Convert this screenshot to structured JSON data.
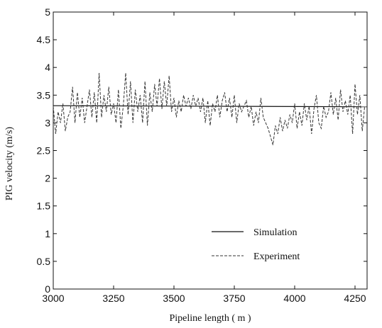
{
  "chart_data": {
    "type": "line",
    "title": "",
    "xlabel": "Pipeline length ( m )",
    "ylabel": "PIG velocity (m/s)",
    "xlim": [
      3000,
      4300
    ],
    "ylim": [
      0,
      5
    ],
    "xticks": [
      "3000",
      "3250",
      "3500",
      "3750",
      "4000",
      "4250"
    ],
    "yticks": [
      "0",
      "0.5",
      "1",
      "1.5",
      "2",
      "2.5",
      "3",
      "3.5",
      "4",
      "4.5",
      "5"
    ],
    "grid": false,
    "legend_position": "lower-right",
    "series": [
      {
        "name": "Simulation",
        "style": "solid",
        "x": [
          3000,
          4300
        ],
        "y": [
          3.31,
          3.29
        ]
      },
      {
        "name": "Experiment",
        "style": "dashed",
        "x": [
          3000,
          3010,
          3020,
          3030,
          3040,
          3050,
          3060,
          3070,
          3080,
          3090,
          3100,
          3110,
          3120,
          3130,
          3140,
          3150,
          3160,
          3170,
          3180,
          3190,
          3200,
          3210,
          3220,
          3230,
          3240,
          3250,
          3260,
          3270,
          3280,
          3290,
          3300,
          3310,
          3320,
          3330,
          3340,
          3350,
          3360,
          3370,
          3380,
          3390,
          3400,
          3410,
          3420,
          3430,
          3440,
          3450,
          3460,
          3470,
          3480,
          3490,
          3500,
          3510,
          3520,
          3530,
          3540,
          3550,
          3560,
          3570,
          3580,
          3590,
          3600,
          3610,
          3620,
          3630,
          3640,
          3650,
          3660,
          3670,
          3680,
          3690,
          3700,
          3710,
          3720,
          3730,
          3740,
          3750,
          3760,
          3770,
          3780,
          3790,
          3800,
          3810,
          3820,
          3830,
          3840,
          3850,
          3860,
          3870,
          3880,
          3890,
          3900,
          3910,
          3920,
          3930,
          3940,
          3950,
          3960,
          3970,
          3980,
          3990,
          4000,
          4010,
          4020,
          4030,
          4040,
          4050,
          4060,
          4070,
          4080,
          4090,
          4100,
          4110,
          4120,
          4130,
          4140,
          4150,
          4160,
          4170,
          4180,
          4190,
          4200,
          4210,
          4220,
          4230,
          4240,
          4250,
          4260,
          4270,
          4280,
          4290
        ],
        "y": [
          3.3,
          2.8,
          3.2,
          3.0,
          3.35,
          2.85,
          3.1,
          3.2,
          3.65,
          3.0,
          3.55,
          3.1,
          3.45,
          3.0,
          3.3,
          3.6,
          3.1,
          3.55,
          3.0,
          3.9,
          3.1,
          3.5,
          3.2,
          3.65,
          3.15,
          3.35,
          3.0,
          3.6,
          2.9,
          3.3,
          3.9,
          3.15,
          3.75,
          3.0,
          3.6,
          3.2,
          3.5,
          3.0,
          3.75,
          2.95,
          3.55,
          3.2,
          3.7,
          3.3,
          3.8,
          3.25,
          3.75,
          3.3,
          3.85,
          3.2,
          3.45,
          3.1,
          3.4,
          3.2,
          3.5,
          3.3,
          3.45,
          3.25,
          3.5,
          3.3,
          3.45,
          3.2,
          3.45,
          3.0,
          3.4,
          2.95,
          3.35,
          3.2,
          3.5,
          3.1,
          3.4,
          3.55,
          3.2,
          3.45,
          3.1,
          3.5,
          3.0,
          3.35,
          3.2,
          3.3,
          3.4,
          3.1,
          3.3,
          2.95,
          3.2,
          3.0,
          3.45,
          3.1,
          3.0,
          2.9,
          2.75,
          2.6,
          2.95,
          2.8,
          3.1,
          2.85,
          3.05,
          2.9,
          3.15,
          3.0,
          3.35,
          2.9,
          3.2,
          2.95,
          3.35,
          3.05,
          3.3,
          2.8,
          3.25,
          3.5,
          3.0,
          2.9,
          3.3,
          3.1,
          3.2,
          3.55,
          3.15,
          3.45,
          3.05,
          3.6,
          3.2,
          3.4,
          3.15,
          3.5,
          2.8,
          3.7,
          3.15,
          3.5,
          2.85,
          3.3
        ]
      }
    ]
  }
}
